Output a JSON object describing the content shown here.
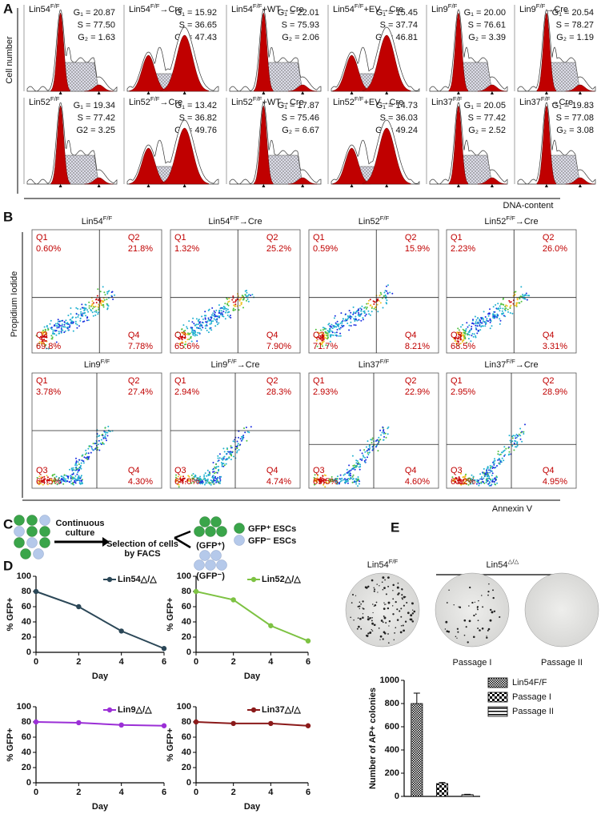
{
  "panel_labels": [
    "A",
    "B",
    "C",
    "D",
    "E"
  ],
  "panel_a": {
    "y_label": "Cell number",
    "x_label": "DNA-content",
    "plots": [
      {
        "name": "Lin54",
        "sup": "F/F",
        "stats": [
          "G₁ = 20.87",
          "S = 77.50",
          "G₂ = 1.63"
        ]
      },
      {
        "name": "Lin54",
        "sup": "F/F",
        "suffix": "→Cre",
        "stats": [
          "G₁ = 15.92",
          "S = 36.65",
          "G₂ = 47.43"
        ]
      },
      {
        "name": "Lin54",
        "sup": "F/F",
        "suffix": "+WT→Cre",
        "stats": [
          "G₁ = 22.01",
          "S = 75.93",
          "G₂ = 2.06"
        ]
      },
      {
        "name": "Lin54",
        "sup": "F/F",
        "suffix": "+EV→Cre",
        "stats": [
          "G₁ = 15.45",
          "S = 37.74",
          "G₂ = 46.81"
        ]
      },
      {
        "name": "Lin9",
        "sup": "F/F",
        "stats": [
          "G₁ = 20.00",
          "S = 76.61",
          "G₂ = 3.39"
        ]
      },
      {
        "name": "Lin9",
        "sup": "F/F",
        "suffix": "→Cre",
        "stats": [
          "G₁ = 20.54",
          "S = 78.27",
          "G₂ = 1.19"
        ]
      },
      {
        "name": "Lin52",
        "sup": "F/F",
        "stats": [
          "G₁ = 19.34",
          "S = 77.42",
          "G2 = 3.25"
        ]
      },
      {
        "name": "Lin52",
        "sup": "F/F",
        "suffix": "→Cre",
        "stats": [
          "G₁ = 13.42",
          "S = 36.82",
          "G₂ = 49.76"
        ]
      },
      {
        "name": "Lin52",
        "sup": "F/F",
        "suffix": "+WT→Cre",
        "stats": [
          "G₁ = 17.87",
          "S = 75.46",
          "G₂ = 6.67"
        ]
      },
      {
        "name": "Lin52",
        "sup": "F/F",
        "suffix": "+EV→Cre",
        "stats": [
          "G₁ = 14.73",
          "S = 36.03",
          "G₂ = 49.24"
        ]
      },
      {
        "name": "Lin37",
        "sup": "F/F",
        "stats": [
          "G₁ = 20.05",
          "S = 77.42",
          "G₂ = 2.52"
        ]
      },
      {
        "name": "Lin37",
        "sup": "F/F",
        "suffix": "→Cre",
        "stats": [
          "G₁ = 19.83",
          "S = 77.08",
          "G₂ = 3.08"
        ]
      }
    ]
  },
  "panel_b": {
    "y_label": "Propidium Iodide",
    "x_label": "Annexin V",
    "plots": [
      {
        "name": "Lin54",
        "sup": "F/F",
        "quadrants": [
          [
            "Q1",
            "0.60%"
          ],
          [
            "Q2",
            "21.8%"
          ],
          [
            "Q3",
            "69.8%"
          ],
          [
            "Q4",
            "7.78%"
          ]
        ]
      },
      {
        "name": "Lin54",
        "sup": "F/F",
        "suffix": "→Cre",
        "quadrants": [
          [
            "Q1",
            "1.32%"
          ],
          [
            "Q2",
            "25.2%"
          ],
          [
            "Q3",
            "65.6%"
          ],
          [
            "Q4",
            "7.90%"
          ]
        ]
      },
      {
        "name": "Lin52",
        "sup": "F/F",
        "quadrants": [
          [
            "Q1",
            "0.59%"
          ],
          [
            "Q2",
            "15.9%"
          ],
          [
            "Q3",
            "71.7%"
          ],
          [
            "Q4",
            "8.21%"
          ]
        ]
      },
      {
        "name": "Lin52",
        "sup": "F/F",
        "suffix": "→Cre",
        "quadrants": [
          [
            "Q1",
            "2.23%"
          ],
          [
            "Q2",
            "26.0%"
          ],
          [
            "Q3",
            "68.5%"
          ],
          [
            "Q4",
            "3.31%"
          ]
        ]
      },
      {
        "name": "Lin9",
        "sup": "F/F",
        "quadrants": [
          [
            "Q1",
            "3.78%"
          ],
          [
            "Q2",
            "27.4%"
          ],
          [
            "Q3",
            "64.5%"
          ],
          [
            "Q4",
            "4.30%"
          ]
        ]
      },
      {
        "name": "Lin9",
        "sup": "F/F",
        "suffix": "→Cre",
        "quadrants": [
          [
            "Q1",
            "2.94%"
          ],
          [
            "Q2",
            "28.3%"
          ],
          [
            "Q3",
            "64.0%"
          ],
          [
            "Q4",
            "4.74%"
          ]
        ]
      },
      {
        "name": "Lin37",
        "sup": "F/F",
        "quadrants": [
          [
            "Q1",
            "2.93%"
          ],
          [
            "Q2",
            "22.9%"
          ],
          [
            "Q3",
            "69.5%"
          ],
          [
            "Q4",
            "4.60%"
          ]
        ]
      },
      {
        "name": "Lin37",
        "sup": "F/F",
        "suffix": "→Cre",
        "quadrants": [
          [
            "Q1",
            "2.95%"
          ],
          [
            "Q2",
            "28.9%"
          ],
          [
            "Q3",
            "63.2%"
          ],
          [
            "Q4",
            "4.95%"
          ]
        ]
      }
    ]
  },
  "panel_c": {
    "step1": [
      "Continuous",
      "culture"
    ],
    "step2": [
      "Selection of cells",
      "by FACS"
    ],
    "pos_group": "(GFP⁺)",
    "neg_group": "(GFP⁻)",
    "legend": [
      "GFP⁺ ESCs",
      "GFP⁻ ESCs"
    ]
  },
  "panel_e": {
    "wt": {
      "name": "Lin54",
      "sup": "F/F"
    },
    "ko": {
      "name": "Lin54",
      "sup": "△/△"
    },
    "passages": [
      "Passage I",
      "Passage II"
    ]
  },
  "chart_data": [
    {
      "type": "line",
      "x": [
        0,
        2,
        4,
        6
      ],
      "xlim": [
        0,
        6
      ],
      "xticks": [
        0,
        2,
        4,
        6
      ],
      "ylim": [
        0,
        100
      ],
      "yticks": [
        0,
        20,
        40,
        60,
        80,
        100
      ],
      "x_label": "Day",
      "y_label": "% GFP+",
      "series": [
        {
          "name": "Lin54△/△",
          "color": "#2b4757",
          "values": [
            80,
            60,
            28,
            5
          ]
        }
      ]
    },
    {
      "type": "line",
      "x": [
        0,
        2,
        4,
        6
      ],
      "xlim": [
        0,
        6
      ],
      "xticks": [
        0,
        2,
        4,
        6
      ],
      "ylim": [
        0,
        100
      ],
      "yticks": [
        0,
        20,
        40,
        60,
        80,
        100
      ],
      "x_label": "Day",
      "y_label": "% GFP+",
      "series": [
        {
          "name": "Lin52△/△",
          "color": "#7dc242",
          "values": [
            80,
            69,
            35,
            15
          ]
        }
      ]
    },
    {
      "type": "line",
      "x": [
        0,
        2,
        4,
        6
      ],
      "xlim": [
        0,
        6
      ],
      "xticks": [
        0,
        2,
        4,
        6
      ],
      "ylim": [
        0,
        100
      ],
      "yticks": [
        0,
        20,
        40,
        60,
        80,
        100
      ],
      "x_label": "Day",
      "y_label": "% GFP+",
      "series": [
        {
          "name": "Lin9△/△",
          "color": "#9b2fd6",
          "values": [
            80,
            79,
            76,
            75
          ]
        }
      ]
    },
    {
      "type": "line",
      "x": [
        0,
        2,
        4,
        6
      ],
      "xlim": [
        0,
        6
      ],
      "xticks": [
        0,
        2,
        4,
        6
      ],
      "ylim": [
        0,
        100
      ],
      "yticks": [
        0,
        20,
        40,
        60,
        80,
        100
      ],
      "x_label": "Day",
      "y_label": "% GFP+",
      "series": [
        {
          "name": "Lin37△/△",
          "color": "#8b1a1a",
          "values": [
            80,
            78,
            78,
            75
          ]
        }
      ]
    },
    {
      "type": "bar",
      "categories": [
        "Lin54F/F",
        "Passage I",
        "Passage II"
      ],
      "values": [
        800,
        110,
        15
      ],
      "errors": [
        90,
        10,
        3
      ],
      "y_label": "Number of AP+ colonies",
      "ylim": [
        0,
        1000
      ],
      "yticks": [
        0,
        200,
        400,
        600,
        800,
        1000
      ],
      "legend": "right"
    }
  ]
}
